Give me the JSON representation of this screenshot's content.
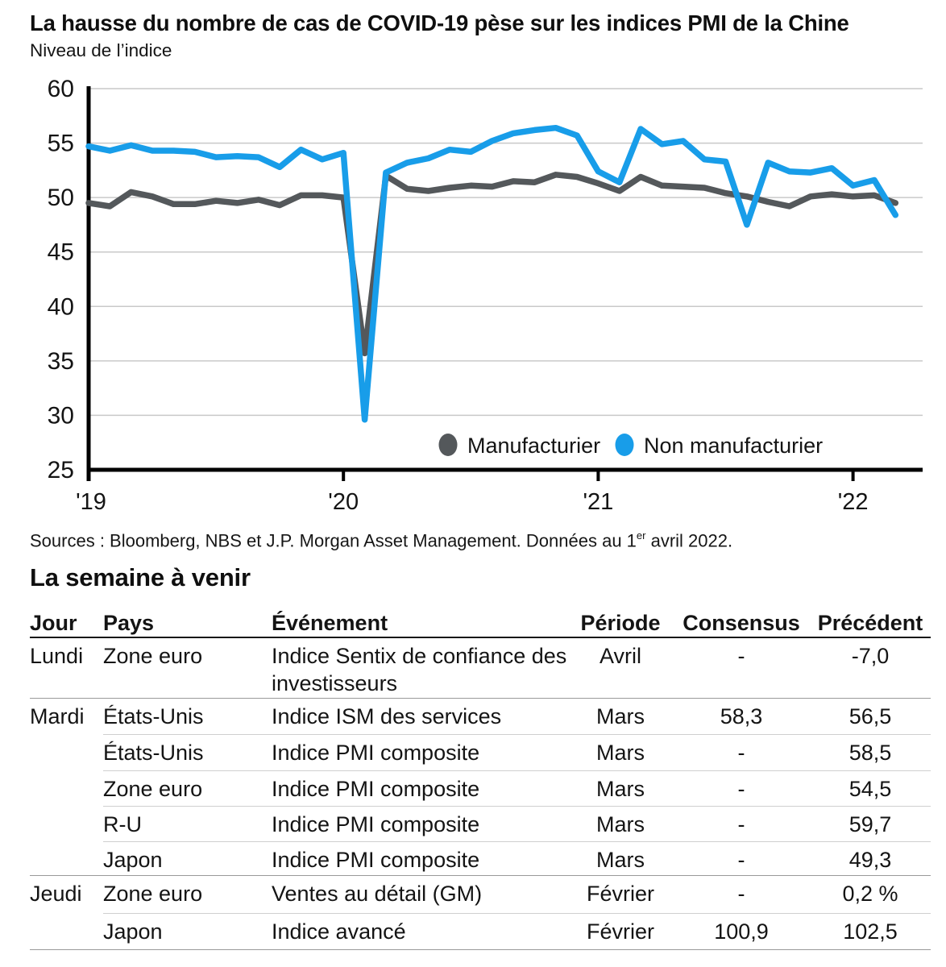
{
  "chart": {
    "title": "La hausse du nombre de cas de COVID-19 pèse sur les indices PMI de la Chine",
    "subtitle": "Niveau de l’indice"
  },
  "chart_data": {
    "type": "line",
    "title": "La hausse du nombre de cas de COVID-19 pèse sur les indices PMI de la Chine",
    "ylabel": "Niveau de l’indice",
    "x_start": "2019-01",
    "x_end": "2022-03",
    "x_tick_labels": [
      "'19",
      "'20",
      "'21",
      "'22"
    ],
    "x_ticks": [
      {
        "label": "'19",
        "month_index": 0
      },
      {
        "label": "'20",
        "month_index": 12
      },
      {
        "label": "'21",
        "month_index": 24
      },
      {
        "label": "'22",
        "month_index": 36
      }
    ],
    "ylim": [
      25,
      60
    ],
    "y_ticks": [
      60,
      55,
      50,
      45,
      40,
      35,
      30,
      25
    ],
    "grid": "horizontal",
    "grid_color": "#c9c9c9",
    "axis_color": "#000000",
    "text_color": "#141414",
    "legend_position": "inside-bottom-right",
    "series": [
      {
        "name": "Manufacturier",
        "color": "#54585b",
        "values": [
          49.5,
          49.2,
          50.5,
          50.1,
          49.4,
          49.4,
          49.7,
          49.5,
          49.8,
          49.3,
          50.2,
          50.2,
          50.0,
          35.7,
          52.0,
          50.8,
          50.6,
          50.9,
          51.1,
          51.0,
          51.5,
          51.4,
          52.1,
          51.9,
          51.3,
          50.6,
          51.9,
          51.1,
          51.0,
          50.9,
          50.4,
          50.1,
          49.6,
          49.2,
          50.1,
          50.3,
          50.1,
          50.2,
          49.5
        ]
      },
      {
        "name": "Non manufacturier",
        "color": "#189de9",
        "values": [
          54.7,
          54.3,
          54.8,
          54.3,
          54.3,
          54.2,
          53.7,
          53.8,
          53.7,
          52.8,
          54.4,
          53.5,
          54.1,
          29.6,
          52.3,
          53.2,
          53.6,
          54.4,
          54.2,
          55.2,
          55.9,
          56.2,
          56.4,
          55.7,
          52.4,
          51.4,
          56.3,
          54.9,
          55.2,
          53.5,
          53.3,
          47.5,
          53.2,
          52.4,
          52.3,
          52.7,
          51.1,
          51.6,
          48.4
        ]
      }
    ]
  },
  "sources": {
    "prefix": "Sources : Bloomberg, NBS et J.P. Morgan Asset Management. Données au 1",
    "superscript": "er",
    "suffix": " avril 2022."
  },
  "week_ahead": {
    "title": "La semaine à venir",
    "columns": [
      "Jour",
      "Pays",
      "Événement",
      "Période",
      "Consensus",
      "Précédent"
    ],
    "rows": [
      {
        "jour": "Lundi",
        "pays": "Zone euro",
        "evenement": "Indice Sentix de confiance des investisseurs",
        "periode": "Avril",
        "consensus": "-",
        "precedent": "-7,0",
        "divider_after": "group"
      },
      {
        "jour": "Mardi",
        "pays": "États-Unis",
        "evenement": "Indice ISM des services",
        "periode": "Mars",
        "consensus": "58,3",
        "precedent": "56,5",
        "divider_after": "inset"
      },
      {
        "jour": "",
        "pays": "États-Unis",
        "evenement": "Indice PMI composite",
        "periode": "Mars",
        "consensus": "-",
        "precedent": "58,5",
        "divider_after": "inset"
      },
      {
        "jour": "",
        "pays": "Zone euro",
        "evenement": "Indice PMI composite",
        "periode": "Mars",
        "consensus": "-",
        "precedent": "54,5",
        "divider_after": "inset"
      },
      {
        "jour": "",
        "pays": "R-U",
        "evenement": "Indice PMI composite",
        "periode": "Mars",
        "consensus": "-",
        "precedent": "59,7",
        "divider_after": "inset"
      },
      {
        "jour": "",
        "pays": "Japon",
        "evenement": "Indice PMI composite",
        "periode": "Mars",
        "consensus": "-",
        "precedent": "49,3",
        "divider_after": "group"
      },
      {
        "jour": "Jeudi",
        "pays": "Zone euro",
        "evenement": "Ventes au détail (GM)",
        "periode": "Février",
        "consensus": "-",
        "precedent": "0,2 %",
        "divider_after": "inset"
      },
      {
        "jour": "",
        "pays": "Japon",
        "evenement": "Indice avancé",
        "periode": "Février",
        "consensus": "100,9",
        "precedent": "102,5",
        "divider_after": "group"
      }
    ]
  }
}
